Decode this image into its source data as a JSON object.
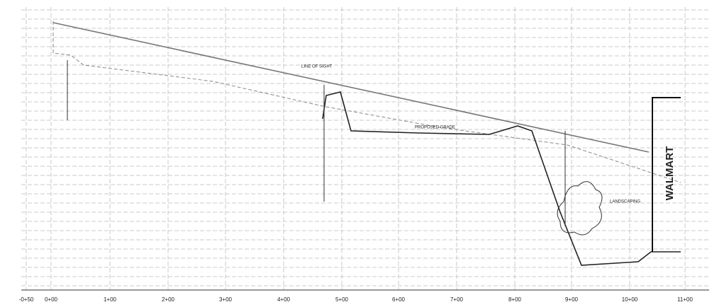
{
  "axis": {
    "labels": [
      "-0+50",
      "0+00",
      "1+00",
      "2+00",
      "3+00",
      "4+00",
      "5+00",
      "6+00",
      "7+00",
      "8+00",
      "9+00",
      "10+00",
      "11+00"
    ]
  },
  "labels": {
    "building": "WALMART",
    "proposed": "PROPOSED GRADE",
    "sight": "LINE OF SIGHT",
    "landscaping": "LANDSCAPING"
  }
}
